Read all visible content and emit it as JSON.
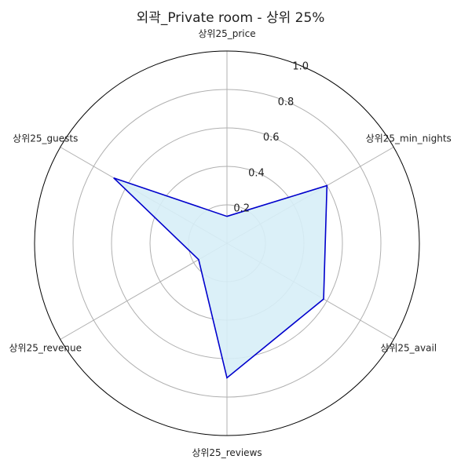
{
  "chart_data": {
    "type": "radar",
    "title": "외곽_Private room - 상위 25%",
    "categories": [
      "상위25_price",
      "상위25_min_nights",
      "상위25_avail",
      "상위25_reviews",
      "상위25_revenue",
      "상위25_guests"
    ],
    "values": [
      0.14,
      0.6,
      0.58,
      0.7,
      0.17,
      0.68
    ],
    "rlim": [
      0,
      1.0
    ],
    "rticks": [
      "0.2",
      "0.4",
      "0.6",
      "0.8",
      "1.0"
    ],
    "grid": true,
    "colors": {
      "line": "#0000cc",
      "fill": "#d7eef7",
      "grid": "#b0b0b0",
      "frame": "#000000"
    }
  }
}
